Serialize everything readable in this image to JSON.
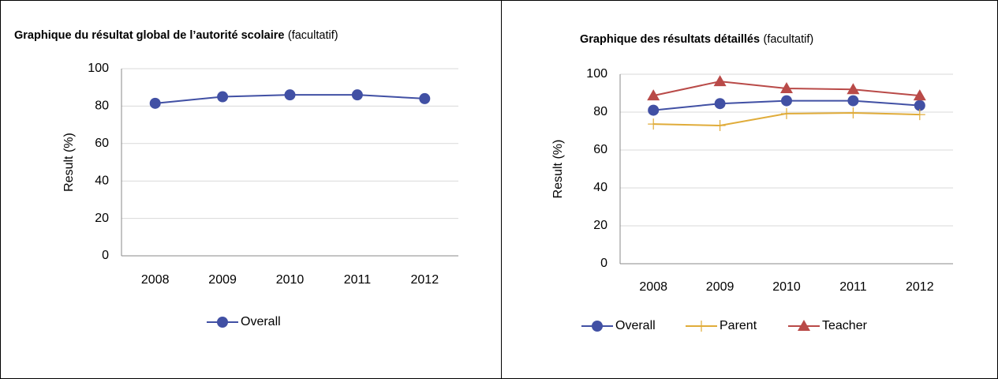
{
  "chart_data": [
    {
      "type": "line",
      "title": "Graphique du résultat global de l’autorité scolaire",
      "subtitle": "(facultatif)",
      "ylabel": "Result (%)",
      "categories": [
        "2008",
        "2009",
        "2010",
        "2011",
        "2012"
      ],
      "ylim": [
        0,
        100
      ],
      "yticks": [
        0,
        20,
        40,
        60,
        80,
        100
      ],
      "grid": true,
      "legend": "bottom",
      "series": [
        {
          "name": "Overall",
          "color": "#4150a4",
          "marker": "circle",
          "values": [
            81.5,
            85,
            86,
            86,
            84
          ]
        }
      ]
    },
    {
      "type": "line",
      "title": "Graphique des résultats détaillés",
      "subtitle": "(facultatif)",
      "ylabel": "Result (%)",
      "categories": [
        "2008",
        "2009",
        "2010",
        "2011",
        "2012"
      ],
      "ylim": [
        0,
        100
      ],
      "yticks": [
        0,
        20,
        40,
        60,
        80,
        100
      ],
      "grid": true,
      "legend": "bottom",
      "series": [
        {
          "name": "Overall",
          "color": "#4150a4",
          "marker": "circle",
          "values": [
            81,
            84.5,
            86,
            86,
            83.5
          ]
        },
        {
          "name": "Parent",
          "color": "#e0ac3a",
          "marker": "plus",
          "values": [
            73.7,
            72.9,
            79.2,
            79.6,
            78.7
          ]
        },
        {
          "name": "Teacher",
          "color": "#b94a48",
          "marker": "triangle",
          "values": [
            88.7,
            96.2,
            92.5,
            92,
            88.7
          ]
        }
      ]
    }
  ]
}
